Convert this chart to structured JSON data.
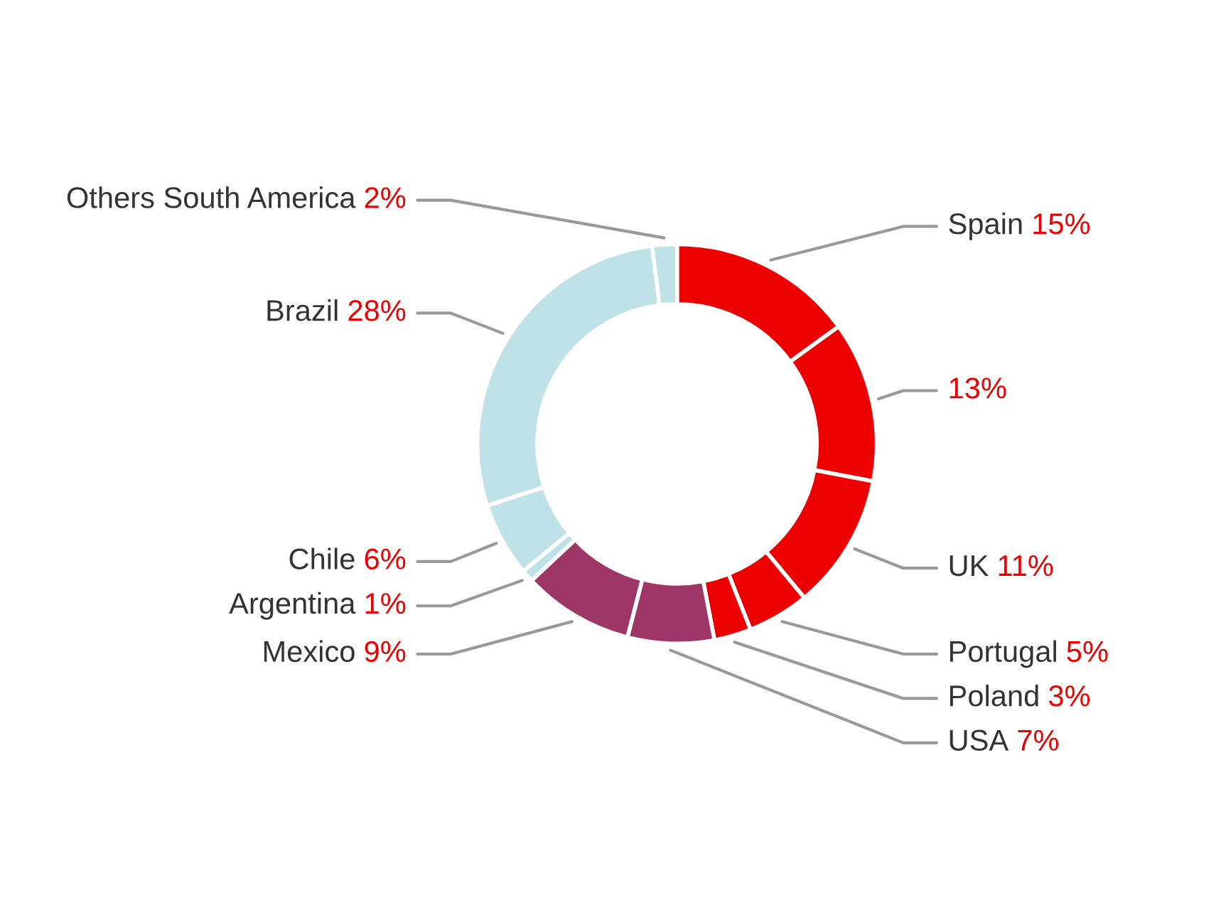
{
  "chart_data": {
    "type": "donut",
    "categories": [
      "Spain",
      null,
      "UK",
      "Portugal",
      "Poland",
      "USA",
      "Mexico",
      "Argentina",
      "Chile",
      "Brazil",
      "Others South America"
    ],
    "values": [
      15,
      13,
      11,
      5,
      3,
      7,
      9,
      1,
      6,
      28,
      2
    ],
    "value_labels": [
      "15%",
      "13%",
      "11%",
      "5%",
      "3%",
      "7%",
      "9%",
      "1%",
      "6%",
      "28%",
      "2%"
    ],
    "colors": [
      "#ec0000",
      "#ec0000",
      "#ec0000",
      "#ec0000",
      "#ec0000",
      "#9e3667",
      "#9e3667",
      "#bfe1e8",
      "#bfe1e8",
      "#bfe1e8",
      "#bfe1e8"
    ],
    "legend": false
  }
}
